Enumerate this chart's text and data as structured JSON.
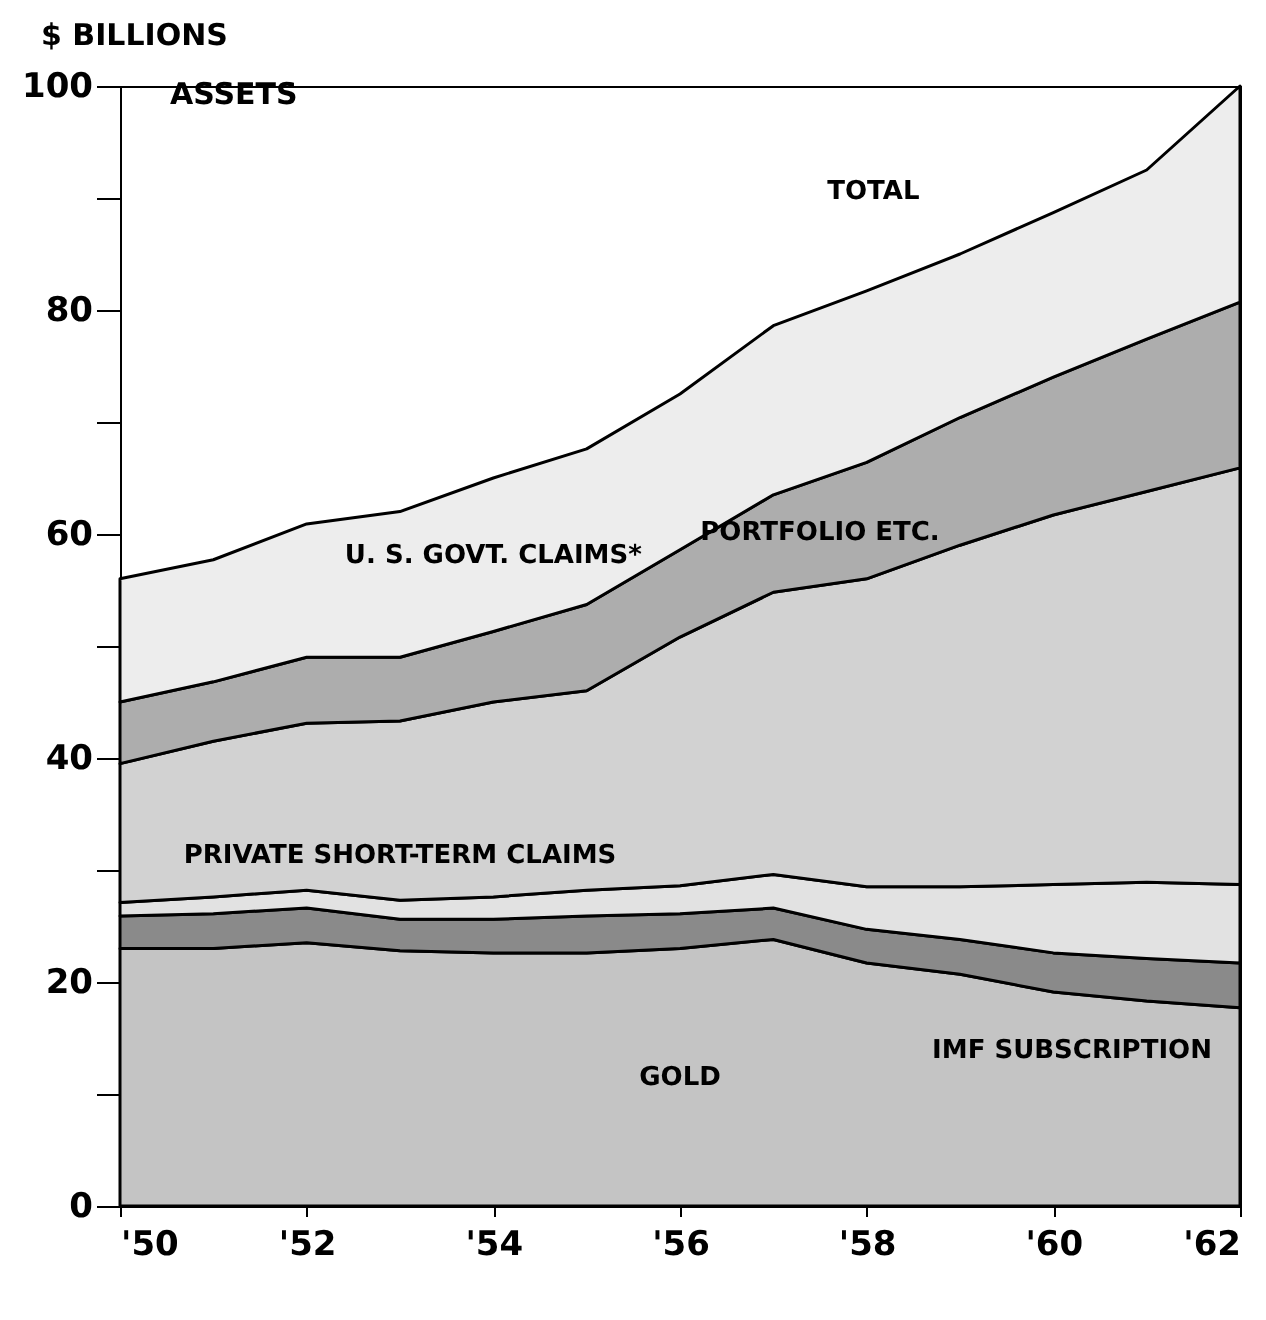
{
  "chart_data": {
    "type": "area",
    "title": "ASSETS",
    "ylabel": "$ BILLIONS",
    "stacked": true,
    "legend": false,
    "x": [
      1950,
      1951,
      1952,
      1953,
      1954,
      1955,
      1956,
      1957,
      1958,
      1959,
      1960,
      1961,
      1962
    ],
    "xlim": [
      1950,
      1962
    ],
    "xticks": [
      {
        "value": 1950,
        "label": "'50"
      },
      {
        "value": 1952,
        "label": "'52"
      },
      {
        "value": 1954,
        "label": "'54"
      },
      {
        "value": 1956,
        "label": "'56"
      },
      {
        "value": 1958,
        "label": "'58"
      },
      {
        "value": 1960,
        "label": "'60"
      },
      {
        "value": 1962,
        "label": "'62"
      }
    ],
    "ylim": [
      0,
      100
    ],
    "yticks": [
      0,
      {
        "value": 10,
        "label": null
      },
      20,
      {
        "value": 30,
        "label": null
      },
      40,
      {
        "value": 50,
        "label": null
      },
      60,
      {
        "value": 70,
        "label": null
      },
      80,
      {
        "value": 90,
        "label": null
      },
      100
    ],
    "series": [
      {
        "name": "GOLD",
        "color": "#c4c4c4",
        "values": [
          23,
          23,
          23.5,
          22.8,
          22.6,
          22.6,
          23,
          23.8,
          21.7,
          20.7,
          19.1,
          18.3,
          17.7
        ]
      },
      {
        "name": "IMF SUBSCRIPTION",
        "color": "#8a8a8a",
        "values": [
          2.9,
          3.1,
          3.1,
          2.8,
          3.0,
          3.3,
          3.1,
          2.8,
          3.0,
          3.1,
          3.5,
          3.8,
          4.0
        ]
      },
      {
        "name": "PRIVATE SHORT-TERM CLAIMS",
        "color": "#e2e2e2",
        "values": [
          1.2,
          1.5,
          1.6,
          1.7,
          2.0,
          2.3,
          2.5,
          3.0,
          3.8,
          4.7,
          6.1,
          6.8,
          7.0
        ]
      },
      {
        "color": "#d2d2d2",
        "values": [
          12.4,
          13.9,
          14.9,
          16.0,
          17.4,
          17.8,
          22.2,
          25.2,
          27.5,
          30.5,
          33.0,
          34.9,
          37.2
        ]
      },
      {
        "name": "PORTFOLIO ETC.",
        "color": "#adadad",
        "values": [
          5.5,
          5.3,
          5.9,
          5.7,
          6.3,
          7.7,
          7.8,
          8.7,
          10.4,
          11.4,
          12.3,
          13.6,
          14.8
        ]
      },
      {
        "name": "U. S. GOVT. CLAIMS*",
        "color": "#ededed",
        "values": [
          11,
          10.9,
          11.9,
          13,
          13.7,
          13.9,
          13.9,
          15.1,
          15.3,
          14.6,
          14.7,
          15.1,
          19.3
        ]
      }
    ],
    "annotations": [
      {
        "text": "TOTAL",
        "x": 1958.5,
        "y": 83.5
      }
    ]
  }
}
